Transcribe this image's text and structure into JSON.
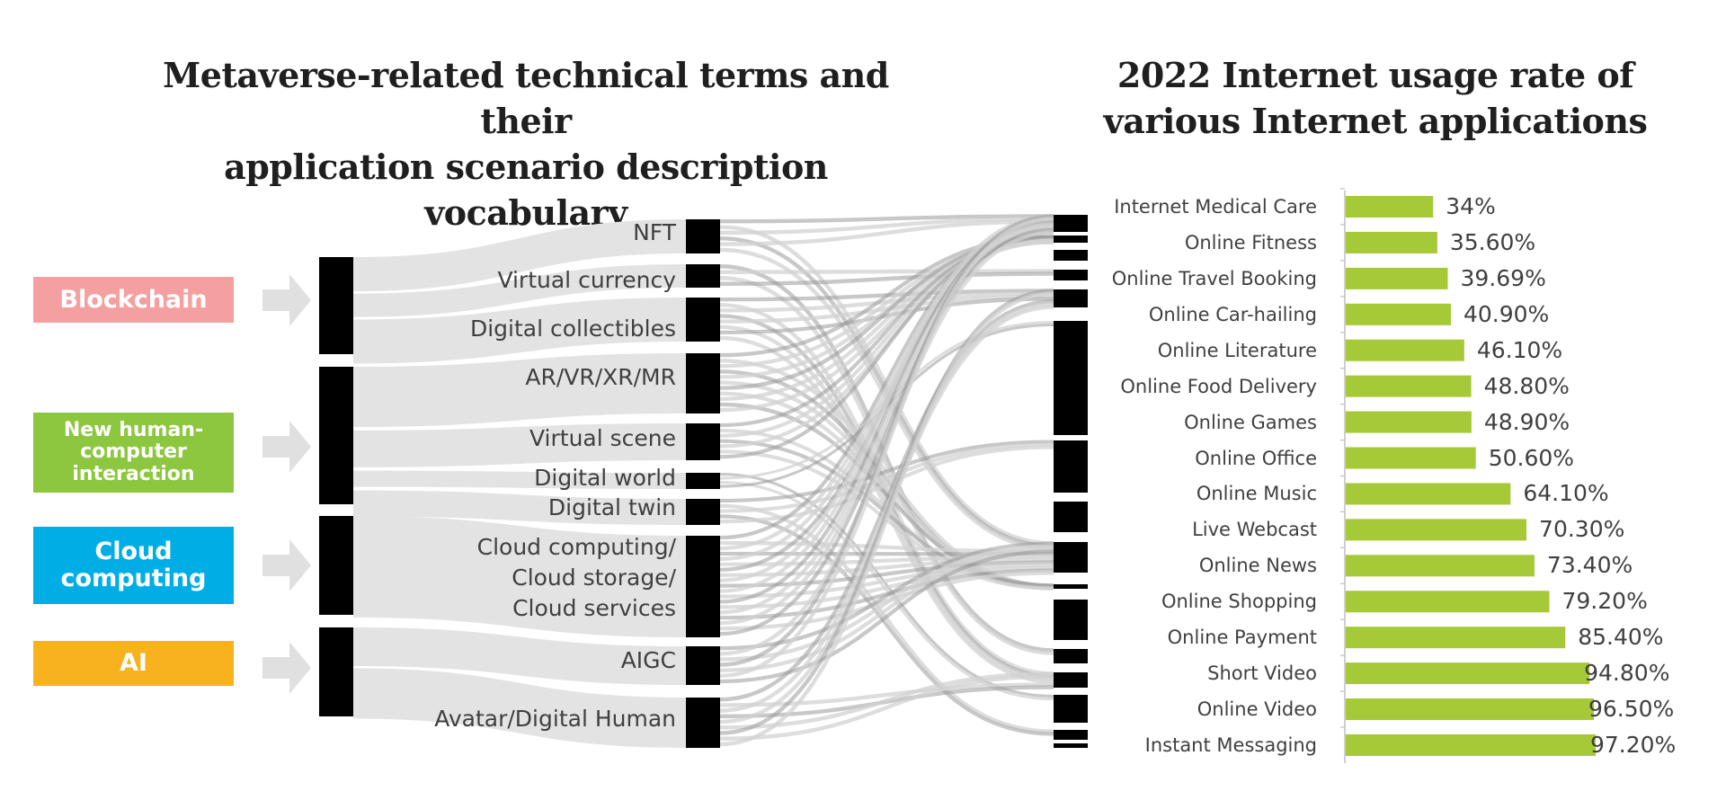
{
  "left_title": "Metaverse-related technical terms and their\napplication scenario description vocabulary",
  "right_title": "2022 Internet usage rate of\nvarious Internet applications",
  "categories": [
    {
      "label": "Blockchain",
      "color": "#f4a0a0"
    },
    {
      "label": "New human-\ncomputer\ninteraction",
      "color": "#8dc63f"
    },
    {
      "label": "Cloud\ncomputing",
      "color": "#00aee5"
    },
    {
      "label": "AI",
      "color": "#f7b21d"
    }
  ],
  "terms": [
    {
      "label": "NFT",
      "category": 0
    },
    {
      "label": "Virtual currency",
      "category": 0
    },
    {
      "label": "Digital collectibles",
      "category": 0
    },
    {
      "label": "AR/VR/XR/MR",
      "category": 1
    },
    {
      "label": "Virtual scene",
      "category": 1
    },
    {
      "label": "Digital world",
      "category": 1
    },
    {
      "label": "Digital twin",
      "category": 1
    },
    {
      "label": "Cloud computing/\nCloud storage/\nCloud services",
      "category": 2
    },
    {
      "label": "AIGC",
      "category": 3
    },
    {
      "label": "Avatar/Digital Human",
      "category": 3
    }
  ],
  "colors": {
    "flow": "#e3e3e3",
    "node": "#000000",
    "arrow": "#e0e0e0",
    "bar": "#a6c937",
    "text": "#404040",
    "axis": "#bfbfbf"
  },
  "chart_data": {
    "type": "bar",
    "orientation": "horizontal",
    "title": "2022 Internet usage rate of various Internet applications",
    "categories": [
      "Internet Medical Care",
      "Online Fitness",
      "Online Travel Booking",
      "Online Car-hailing",
      "Online Literature",
      "Online Food Delivery",
      "Online Games",
      "Online Office",
      "Online Music",
      "Live Webcast",
      "Online News",
      "Online Shopping",
      "Online Payment",
      "Short Video",
      "Online Video",
      "Instant Messaging"
    ],
    "values": [
      34,
      35.6,
      39.69,
      40.9,
      46.1,
      48.8,
      48.9,
      50.6,
      64.1,
      70.3,
      73.4,
      79.2,
      85.4,
      94.8,
      96.5,
      97.2
    ],
    "value_labels": [
      "34%",
      "35.60%",
      "39.69%",
      "40.90%",
      "46.10%",
      "48.80%",
      "48.90%",
      "50.60%",
      "64.10%",
      "70.30%",
      "73.40%",
      "79.20%",
      "85.40%",
      "94.80%",
      "96.50%",
      "97.20%"
    ],
    "unit": "%",
    "xlim": [
      0,
      100
    ]
  }
}
